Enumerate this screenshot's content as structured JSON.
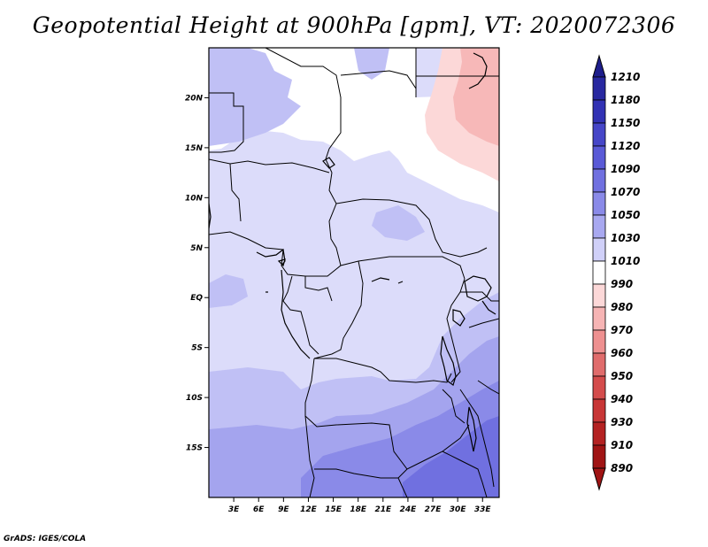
{
  "title": "Geopotential Height at 900hPa [gpm], VT: 2020072306",
  "credit": "GrADS: IGES/COLA",
  "map": {
    "lon_range": [
      0,
      35
    ],
    "lat_range": [
      -20,
      25
    ],
    "x_ticks": [
      "3E",
      "6E",
      "9E",
      "12E",
      "15E",
      "18E",
      "21E",
      "24E",
      "27E",
      "30E",
      "33E"
    ],
    "y_ticks": [
      "20N",
      "15N",
      "10N",
      "5N",
      "EQ",
      "5S",
      "10S",
      "15S"
    ]
  },
  "legend": {
    "levels": [
      "1210",
      "1180",
      "1150",
      "1120",
      "1090",
      "1070",
      "1050",
      "1030",
      "1010",
      "990",
      "980",
      "970",
      "960",
      "950",
      "940",
      "930",
      "910",
      "890"
    ],
    "colors": [
      "#1e1e8c",
      "#2828a0",
      "#3232b4",
      "#4646c8",
      "#5a5ad7",
      "#7070e0",
      "#8a8ae8",
      "#a8a8f0",
      "#d0d0f8",
      "#ffffff",
      "#fcd8d8",
      "#f6b4b4",
      "#ee9090",
      "#e06c6c",
      "#d44c4c",
      "#c83636",
      "#b42222",
      "#a01414"
    ]
  },
  "field_colors": {
    "c1010": "#dcdcfa",
    "c1030": "#c0c0f5",
    "c1050": "#a4a4ee",
    "c1070": "#8a8ae8",
    "c1090": "#7070e0",
    "c990": "#ffffff",
    "c980": "#fcd8d8",
    "c970": "#f7b8b8"
  }
}
